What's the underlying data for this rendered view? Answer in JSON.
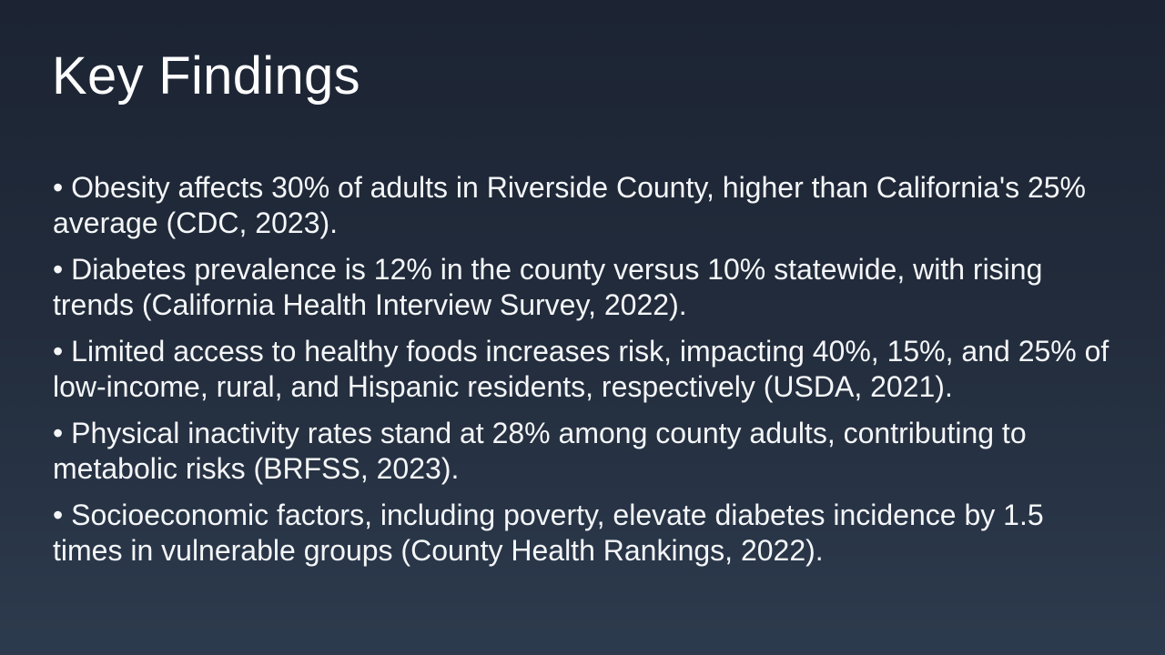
{
  "slide": {
    "title": "Key Findings",
    "bullet_glyph": "•",
    "bullets": [
      {
        "text": "Obesity affects 30% of adults in Riverside County, higher than California's 25% average (CDC, 2023)."
      },
      {
        "text": "Diabetes prevalence is 12% in the county versus 10% statewide, with rising trends (California Health Interview Survey, 2022)."
      },
      {
        "text": "Limited access to healthy foods increases risk, impacting 40%, 15%, and 25% of low-income, rural, and Hispanic residents, respectively (USDA, 2021)."
      },
      {
        "text": "Physical inactivity rates stand at 28% among county adults, contributing to metabolic risks (BRFSS, 2023)."
      },
      {
        "text": "Socioeconomic factors, including poverty, elevate diabetes incidence by 1.5 times in vulnerable groups (County Health Rankings, 2022)."
      }
    ],
    "colors": {
      "background_top": "#1c2433",
      "background_bottom": "#2d3b4e",
      "title_text": "#fdfdfe",
      "body_text": "#f4f6f8"
    }
  }
}
